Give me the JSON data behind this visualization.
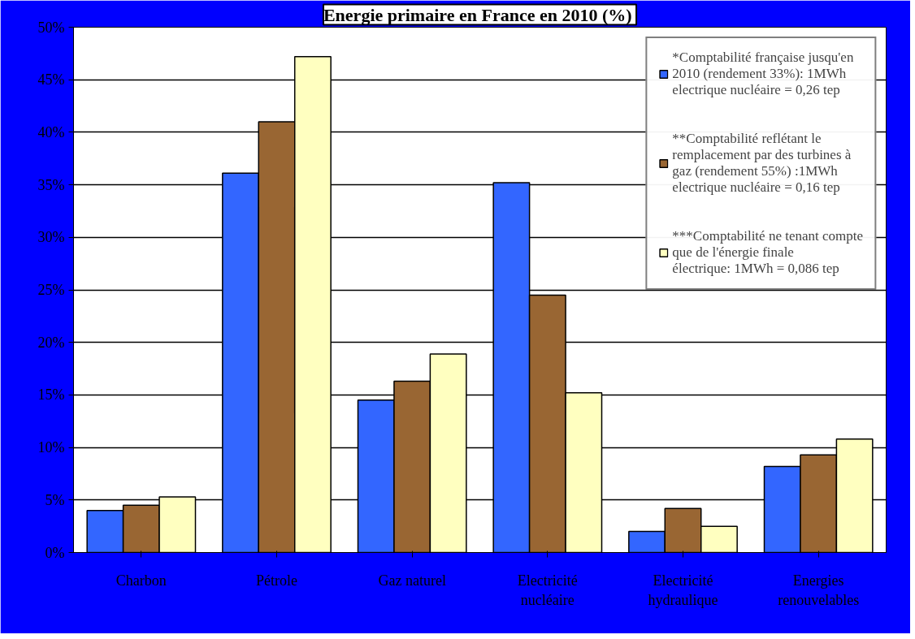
{
  "chart_data": {
    "type": "bar",
    "title": "Energie primaire en France en 2010  (%)",
    "categories": [
      "Charbon",
      "Pétrole",
      "Gaz naturel",
      "Electricité nucléaire",
      "Electricité hydraulique",
      "Energies renouvelables"
    ],
    "series": [
      {
        "name": "*Comptabilité française jusqu'en 2010 (rendement 33%): 1MWh electrique nucléaire = 0,26 tep",
        "color": "#3366ff",
        "values": [
          4.0,
          36.1,
          14.5,
          35.2,
          2.0,
          8.2
        ]
      },
      {
        "name": "**Comptabilité reflétant le remplacement par des turbines à gaz (rendement 55%) :1MWh electrique nucléaire = 0,16 tep",
        "color": "#996633",
        "values": [
          4.5,
          41.0,
          16.3,
          24.5,
          4.2,
          9.3
        ]
      },
      {
        "name": "***Comptabilité ne tenant compte que de l'énergie finale électrique: 1MWh = 0,086 tep",
        "color": "#ffffc0",
        "values": [
          5.3,
          47.2,
          18.9,
          15.2,
          2.5,
          10.8
        ]
      }
    ],
    "ylim": [
      0,
      50
    ],
    "yticks": [
      {
        "value": 0,
        "label": "0%"
      },
      {
        "value": 5,
        "label": "5%"
      },
      {
        "value": 10,
        "label": "10%"
      },
      {
        "value": 15,
        "label": "15%"
      },
      {
        "value": 20,
        "label": "20%"
      },
      {
        "value": 25,
        "label": "25%"
      },
      {
        "value": 30,
        "label": "30%"
      },
      {
        "value": 35,
        "label": "35%"
      },
      {
        "value": 40,
        "label": "40%"
      },
      {
        "value": 45,
        "label": "45%"
      },
      {
        "value": 50,
        "label": "50%"
      }
    ],
    "grid": "y",
    "legend": "top right"
  }
}
